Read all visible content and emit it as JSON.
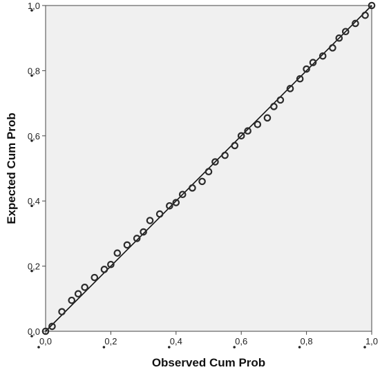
{
  "chart_data": {
    "type": "scatter",
    "title": "",
    "xlabel": "Observed Cum Prob",
    "ylabel": "Expected Cum Prob",
    "xlim": [
      0.0,
      1.0
    ],
    "ylim": [
      0.0,
      1.0
    ],
    "xticks": [
      "0,0",
      "0,2",
      "0,4",
      "0,6",
      "0,8",
      "1,0"
    ],
    "yticks": [
      "0,0",
      "0,2",
      "0,4",
      "0,6",
      "0,8",
      "1,0"
    ],
    "tick_values": [
      0.0,
      0.2,
      0.4,
      0.6,
      0.8,
      1.0
    ],
    "grid": false,
    "plot_background": "#f0f0f0",
    "point_color": "#2b2b2b",
    "reference_line": {
      "from": [
        0.0,
        0.0
      ],
      "to": [
        1.0,
        1.0
      ],
      "color": "#111111"
    },
    "series": [
      {
        "x": [
          0.0,
          0.02,
          0.05,
          0.08,
          0.1,
          0.12,
          0.15,
          0.18,
          0.2,
          0.22,
          0.25,
          0.28,
          0.3,
          0.32,
          0.35,
          0.38,
          0.4,
          0.42,
          0.45,
          0.48,
          0.5,
          0.52,
          0.55,
          0.58,
          0.6,
          0.62,
          0.65,
          0.68,
          0.7,
          0.72,
          0.75,
          0.78,
          0.8,
          0.82,
          0.85,
          0.88,
          0.9,
          0.92,
          0.95,
          0.98,
          1.0
        ],
        "y": [
          0.0,
          0.015,
          0.06,
          0.095,
          0.115,
          0.135,
          0.165,
          0.19,
          0.205,
          0.24,
          0.265,
          0.285,
          0.305,
          0.34,
          0.36,
          0.385,
          0.395,
          0.42,
          0.44,
          0.46,
          0.49,
          0.52,
          0.54,
          0.57,
          0.6,
          0.615,
          0.635,
          0.655,
          0.69,
          0.71,
          0.745,
          0.775,
          0.805,
          0.825,
          0.845,
          0.87,
          0.9,
          0.92,
          0.945,
          0.97,
          1.0
        ]
      }
    ]
  }
}
